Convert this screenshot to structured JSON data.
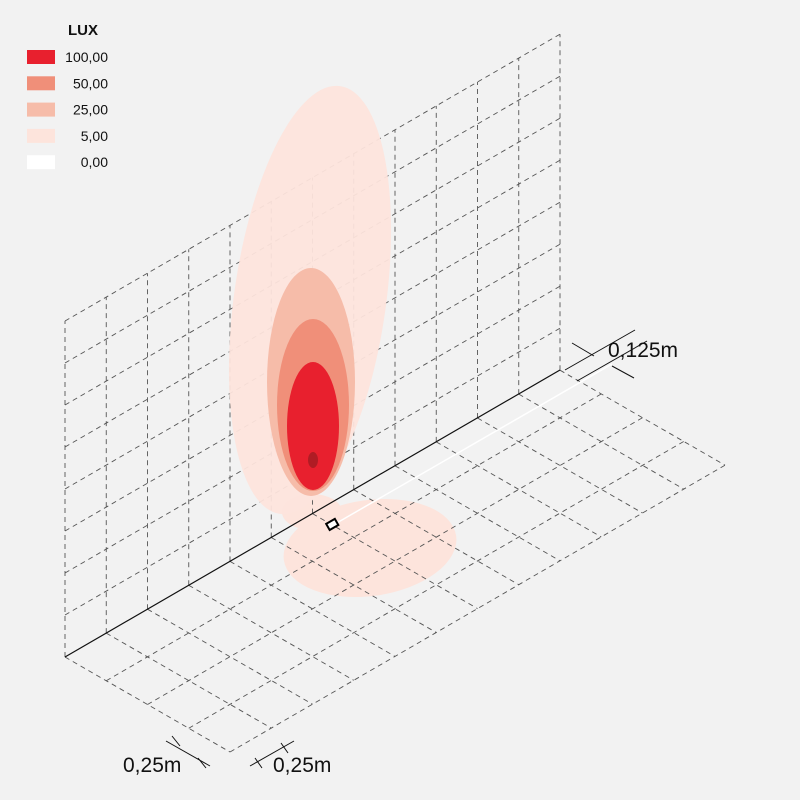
{
  "legend": {
    "title": "LUX",
    "items": [
      {
        "label": "100,00",
        "color": "#e8202e"
      },
      {
        "label": "50,00",
        "color": "#f08f79"
      },
      {
        "label": "25,00",
        "color": "#f6bca9"
      },
      {
        "label": "5,00",
        "color": "#fde4dc"
      },
      {
        "label": "0,00",
        "color": "#ffffff"
      }
    ]
  },
  "dimensions": {
    "height_step": "0,125m",
    "width_step": "0,25m",
    "depth_step": "0,25m"
  }
}
